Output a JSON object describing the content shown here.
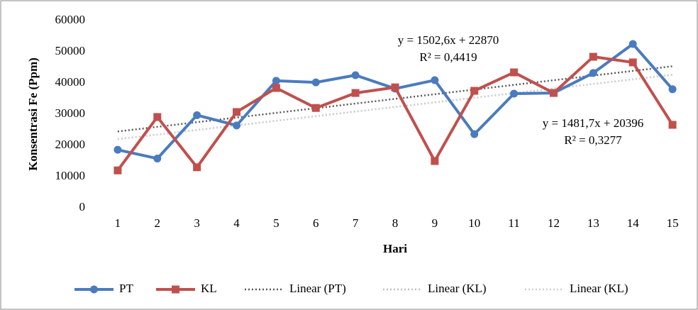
{
  "chart_data": {
    "type": "line",
    "y_label": "Konsentrasi Fe (Ppm)",
    "x_label": "Hari",
    "categories": [
      "1",
      "2",
      "3",
      "4",
      "5",
      "6",
      "7",
      "8",
      "9",
      "10",
      "11",
      "12",
      "13",
      "14",
      "15"
    ],
    "series": [
      {
        "name": "PT",
        "color": "#4a7bbf",
        "marker": "circle",
        "values": [
          18600,
          15800,
          29700,
          26400,
          40700,
          40200,
          42500,
          38200,
          40900,
          23600,
          36600,
          36800,
          43200,
          52500,
          38000
        ]
      },
      {
        "name": "KL",
        "color": "#c0504d",
        "marker": "square",
        "values": [
          12000,
          29100,
          13000,
          30700,
          38400,
          32000,
          36800,
          38600,
          15000,
          37500,
          43400,
          36800,
          48400,
          46600,
          26600
        ]
      }
    ],
    "trendlines": [
      {
        "name": "Linear (PT)",
        "series": 0,
        "color": "#595959",
        "equation": "y = 1502,6x + 22870",
        "r2": "R² = 0,4419"
      },
      {
        "name": "Linear (KL)",
        "series": 1,
        "color": "#bfbfbf",
        "equation": "y = 1481,7x + 20396",
        "r2": "R² = 0,3277"
      },
      {
        "name": "Linear (KL)",
        "series": 1,
        "color": "#cfcfcf"
      }
    ],
    "ylim": [
      0,
      60000
    ],
    "yticks": [
      0,
      10000,
      20000,
      30000,
      40000,
      50000,
      60000
    ],
    "grid": false
  }
}
